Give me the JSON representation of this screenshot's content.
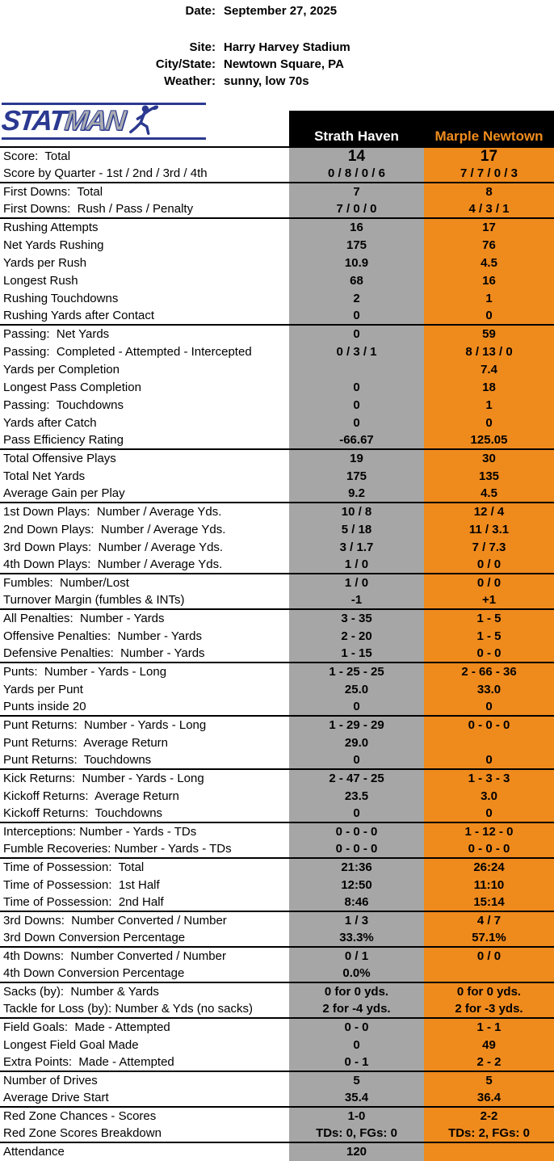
{
  "meta": {
    "date_label": "Date:",
    "date": "September 27, 2025",
    "site_label": "Site:",
    "site": "Harry Harvey Stadium",
    "city_state_label": "City/State:",
    "city_state": "Newtown Square, PA",
    "weather_label": "Weather:",
    "weather": "sunny, low 70s"
  },
  "logo": {
    "stat": "STAT",
    "man": "MAN",
    "player_icon": "football-player-icon"
  },
  "teams": {
    "home": "Strath Haven",
    "away": "Marple Newtown"
  },
  "colors": {
    "home_column": "#a6a6a6",
    "away_column": "#ef8a1d",
    "away_header_text": "#f08c1e",
    "header_bg": "#000000",
    "logo_navy": "#2b3990",
    "logo_gray": "#a9abb0"
  },
  "rows": [
    {
      "label": "Score:  Total",
      "home": "14",
      "away": "17",
      "big": true
    },
    {
      "label": "Score by Quarter - 1st / 2nd / 3rd / 4th",
      "home": "0 / 8 / 0 / 6",
      "away": "7 / 7 / 0 / 3",
      "end": true
    },
    {
      "label": "First Downs:  Total",
      "home": "7",
      "away": "8"
    },
    {
      "label": "First Downs:  Rush / Pass / Penalty",
      "home": "7 / 0 / 0",
      "away": "4 / 3 / 1",
      "end": true
    },
    {
      "label": "Rushing Attempts",
      "home": "16",
      "away": "17"
    },
    {
      "label": "Net Yards Rushing",
      "home": "175",
      "away": "76"
    },
    {
      "label": "Yards per Rush",
      "home": "10.9",
      "away": "4.5"
    },
    {
      "label": "Longest Rush",
      "home": "68",
      "away": "16"
    },
    {
      "label": "Rushing Touchdowns",
      "home": "2",
      "away": "1"
    },
    {
      "label": "Rushing Yards after Contact",
      "home": "0",
      "away": "0",
      "end": true
    },
    {
      "label": "Passing:  Net Yards",
      "home": "0",
      "away": "59"
    },
    {
      "label": "Passing:  Completed - Attempted - Intercepted",
      "home": "0 / 3 / 1",
      "away": "8 / 13 / 0"
    },
    {
      "label": "Yards per Completion",
      "home": "",
      "away": "7.4"
    },
    {
      "label": "Longest Pass Completion",
      "home": "0",
      "away": "18"
    },
    {
      "label": "Passing:  Touchdowns",
      "home": "0",
      "away": "1"
    },
    {
      "label": "Yards after Catch",
      "home": "0",
      "away": "0"
    },
    {
      "label": "Pass Efficiency Rating",
      "home": "-66.67",
      "away": "125.05",
      "end": true
    },
    {
      "label": "Total Offensive Plays",
      "home": "19",
      "away": "30"
    },
    {
      "label": "Total Net Yards",
      "home": "175",
      "away": "135"
    },
    {
      "label": "Average Gain per Play",
      "home": "9.2",
      "away": "4.5",
      "end": true
    },
    {
      "label": "1st Down Plays:  Number / Average Yds.",
      "home": "10 / 8",
      "away": "12 / 4"
    },
    {
      "label": "2nd Down Plays:  Number / Average Yds.",
      "home": "5 / 18",
      "away": "11 / 3.1"
    },
    {
      "label": "3rd Down Plays:  Number / Average Yds.",
      "home": "3 / 1.7",
      "away": "7 / 7.3"
    },
    {
      "label": "4th Down Plays:  Number / Average Yds.",
      "home": "1 / 0",
      "away": "0 / 0",
      "end": true
    },
    {
      "label": "Fumbles:  Number/Lost",
      "home": "1 / 0",
      "away": "0 / 0"
    },
    {
      "label": "Turnover Margin (fumbles & INTs)",
      "home": "-1",
      "away": "+1",
      "end": true
    },
    {
      "label": "All Penalties:  Number - Yards",
      "home": "3 - 35",
      "away": "1 - 5"
    },
    {
      "label": "Offensive Penalties:  Number - Yards",
      "home": "2 - 20",
      "away": "1 - 5"
    },
    {
      "label": "Defensive Penalties:  Number - Yards",
      "home": "1 - 15",
      "away": "0 - 0",
      "end": true
    },
    {
      "label": "Punts:  Number - Yards - Long",
      "home": "1 - 25 - 25",
      "away": "2 - 66 - 36"
    },
    {
      "label": "Yards per Punt",
      "home": "25.0",
      "away": "33.0"
    },
    {
      "label": "Punts inside 20",
      "home": "0",
      "away": "0",
      "end": true
    },
    {
      "label": "Punt Returns:  Number - Yards - Long",
      "home": "1 - 29 - 29",
      "away": "0 - 0 - 0"
    },
    {
      "label": "Punt Returns:  Average Return",
      "home": "29.0",
      "away": ""
    },
    {
      "label": "Punt Returns:  Touchdowns",
      "home": "0",
      "away": "0",
      "end": true
    },
    {
      "label": "Kick Returns:  Number - Yards - Long",
      "home": "2 - 47 - 25",
      "away": "1 - 3 - 3"
    },
    {
      "label": "Kickoff Returns:  Average Return",
      "home": "23.5",
      "away": "3.0"
    },
    {
      "label": "Kickoff Returns:  Touchdowns",
      "home": "0",
      "away": "0",
      "end": true
    },
    {
      "label": "Interceptions: Number - Yards - TDs",
      "home": "0 - 0 - 0",
      "away": "1 - 12 - 0"
    },
    {
      "label": "Fumble Recoveries: Number - Yards - TDs",
      "home": "0 - 0 - 0",
      "away": "0 - 0 - 0",
      "end": true
    },
    {
      "label": "Time of Possession:  Total",
      "home": "21:36",
      "away": "26:24"
    },
    {
      "label": "Time of Possession:  1st Half",
      "home": "12:50",
      "away": "11:10"
    },
    {
      "label": "Time of Possession:  2nd Half",
      "home": "8:46",
      "away": "15:14",
      "end": true
    },
    {
      "label": "3rd Downs:  Number Converted / Number",
      "home": "1 / 3",
      "away": "4 / 7"
    },
    {
      "label": "3rd Down Conversion Percentage",
      "home": "33.3%",
      "away": "57.1%",
      "end": true
    },
    {
      "label": "4th Downs:  Number Converted / Number",
      "home": "0 / 1",
      "away": "0 / 0"
    },
    {
      "label": "4th Down Conversion Percentage",
      "home": "0.0%",
      "away": "",
      "end": true
    },
    {
      "label": "Sacks (by):  Number & Yards",
      "home": "0 for 0 yds.",
      "away": "0 for 0 yds."
    },
    {
      "label": "Tackle for Loss (by): Number & Yds (no sacks)",
      "home": "2 for -4 yds.",
      "away": "2 for -3 yds.",
      "end": true
    },
    {
      "label": "Field Goals:  Made - Attempted",
      "home": "0 - 0",
      "away": "1 - 1"
    },
    {
      "label": "Longest Field Goal Made",
      "home": "0",
      "away": "49"
    },
    {
      "label": "Extra Points:  Made - Attempted",
      "home": "0 - 1",
      "away": "2 - 2",
      "end": true
    },
    {
      "label": "Number of Drives",
      "home": "5",
      "away": "5"
    },
    {
      "label": "Average Drive Start",
      "home": "35.4",
      "away": "36.4",
      "end": true
    },
    {
      "label": "Red Zone Chances - Scores",
      "home": "1-0",
      "away": "2-2"
    },
    {
      "label": "Red Zone Scores Breakdown",
      "home": "TDs: 0, FGs: 0",
      "away": "TDs: 2, FGs: 0",
      "end": true
    },
    {
      "label": "Attendance",
      "home": "120",
      "away": ""
    }
  ]
}
